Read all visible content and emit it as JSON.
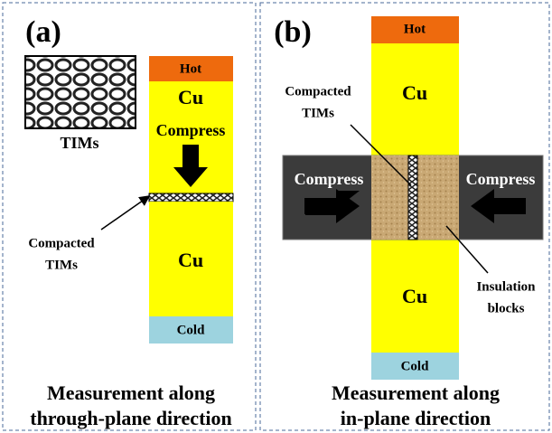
{
  "panels": [
    {
      "label": "(a)",
      "sample_label": "TIMs",
      "hot": "Hot",
      "cu_top": "Cu",
      "compress": "Compress",
      "compacted": [
        "Compacted",
        "TIMs"
      ],
      "cu_bottom": "Cu",
      "cold": "Cold",
      "caption": [
        "Measurement along",
        "through-plane direction"
      ]
    },
    {
      "label": "(b)",
      "hot": "Hot",
      "cu_top": "Cu",
      "compacted": [
        "Compacted",
        "TIMs"
      ],
      "compress_left": "Compress",
      "compress_right": "Compress",
      "cu_bottom": "Cu",
      "insulation": [
        "Insulation",
        "blocks"
      ],
      "cold": "Cold",
      "caption": [
        "Measurement along",
        "in-plane direction"
      ]
    }
  ]
}
